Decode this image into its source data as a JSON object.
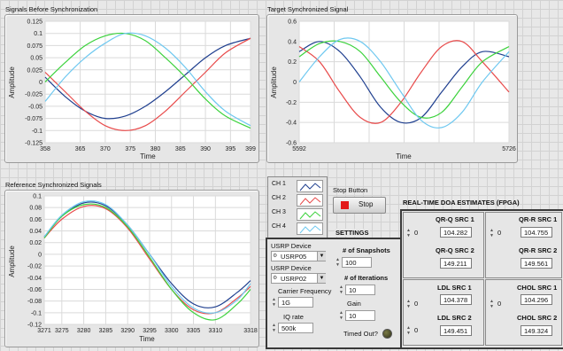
{
  "charts": {
    "before": {
      "title": "Signals Before Synchronization",
      "xlabel": "Time",
      "ylabel": "Amplitude",
      "xticks": [
        "358",
        "365",
        "370",
        "375",
        "380",
        "385",
        "390",
        "395",
        "399"
      ],
      "yticks": [
        "0.125",
        "0.1",
        "0.075",
        "0.05",
        "0.025",
        "0",
        "-0.025",
        "-0.05",
        "-0.075",
        "-0.1",
        "-0.125"
      ]
    },
    "target": {
      "title": "Target Synchronized Signal",
      "xlabel": "Time",
      "ylabel": "Amplitude",
      "xticks": [
        "5592",
        "5726"
      ],
      "yticks": [
        "0.6",
        "0.4",
        "0.2",
        "0",
        "-0.2",
        "-0.4",
        "-0.6"
      ]
    },
    "reference": {
      "title": "Reference Synchronized Signals",
      "xlabel": "Time",
      "ylabel": "Amplitude",
      "xticks": [
        "3271",
        "3275",
        "3280",
        "3285",
        "3290",
        "3295",
        "3300",
        "3305",
        "3310",
        "3318"
      ],
      "yticks": [
        "0.1",
        "0.08",
        "0.06",
        "0.04",
        "0.02",
        "0",
        "-0.02",
        "-0.04",
        "-0.06",
        "-0.08",
        "-0.1",
        "-0.12"
      ]
    }
  },
  "chart_data": [
    {
      "type": "line",
      "title": "Signals Before Synchronization",
      "xlabel": "Time",
      "ylabel": "Amplitude",
      "xlim": [
        358,
        399
      ],
      "ylim": [
        -0.125,
        0.125
      ],
      "grid": true,
      "series": [
        {
          "name": "CH 1",
          "color": "#1f3f8f",
          "x": [
            358,
            362,
            366,
            370,
            374,
            378,
            382,
            386,
            390,
            394,
            399
          ],
          "values": [
            0.01,
            -0.03,
            -0.06,
            -0.075,
            -0.07,
            -0.05,
            -0.02,
            0.015,
            0.05,
            0.075,
            0.09
          ]
        },
        {
          "name": "CH 2",
          "color": "#e84a4a",
          "x": [
            358,
            362,
            366,
            370,
            374,
            378,
            382,
            386,
            390,
            394,
            399
          ],
          "values": [
            0.02,
            -0.02,
            -0.06,
            -0.09,
            -0.1,
            -0.09,
            -0.06,
            -0.02,
            0.02,
            0.06,
            0.09
          ]
        },
        {
          "name": "CH 3",
          "color": "#3cd23c",
          "x": [
            358,
            362,
            366,
            370,
            374,
            378,
            382,
            386,
            390,
            394,
            399
          ],
          "values": [
            0.0,
            0.04,
            0.075,
            0.095,
            0.1,
            0.085,
            0.05,
            0.01,
            -0.035,
            -0.07,
            -0.095
          ]
        },
        {
          "name": "CH 4",
          "color": "#6ec8f0",
          "x": [
            358,
            362,
            366,
            370,
            374,
            378,
            382,
            386,
            390,
            394,
            399
          ],
          "values": [
            -0.04,
            0.01,
            0.05,
            0.08,
            0.1,
            0.095,
            0.07,
            0.03,
            -0.02,
            -0.06,
            -0.09
          ]
        }
      ]
    },
    {
      "type": "line",
      "title": "Target Synchronized Signal",
      "xlabel": "Time",
      "ylabel": "Amplitude",
      "xlim": [
        5592,
        5726
      ],
      "ylim": [
        -0.6,
        0.6
      ],
      "grid": true,
      "series": [
        {
          "name": "CH 1",
          "color": "#1f3f8f",
          "x": [
            5592,
            5605,
            5618,
            5631,
            5644,
            5657,
            5670,
            5683,
            5696,
            5709,
            5726
          ],
          "values": [
            0.3,
            0.4,
            0.3,
            0.05,
            -0.25,
            -0.4,
            -0.35,
            -0.1,
            0.15,
            0.3,
            0.25
          ]
        },
        {
          "name": "CH 2",
          "color": "#e84a4a",
          "x": [
            5592,
            5605,
            5618,
            5631,
            5644,
            5657,
            5670,
            5683,
            5696,
            5709,
            5726
          ],
          "values": [
            0.35,
            0.2,
            -0.1,
            -0.35,
            -0.4,
            -0.2,
            0.1,
            0.35,
            0.4,
            0.2,
            -0.1
          ]
        },
        {
          "name": "CH 3",
          "color": "#3cd23c",
          "x": [
            5592,
            5605,
            5618,
            5631,
            5644,
            5657,
            5670,
            5683,
            5696,
            5709,
            5726
          ],
          "values": [
            0.25,
            0.38,
            0.4,
            0.3,
            0.05,
            -0.2,
            -0.35,
            -0.3,
            -0.05,
            0.2,
            0.35
          ]
        },
        {
          "name": "CH 4",
          "color": "#6ec8f0",
          "x": [
            5592,
            5605,
            5618,
            5631,
            5644,
            5657,
            5670,
            5683,
            5696,
            5709,
            5726
          ],
          "values": [
            0.0,
            0.25,
            0.42,
            0.4,
            0.2,
            -0.1,
            -0.38,
            -0.45,
            -0.3,
            0.0,
            0.3
          ]
        }
      ]
    },
    {
      "type": "line",
      "title": "Reference Synchronized Signals",
      "xlabel": "Time",
      "ylabel": "Amplitude",
      "xlim": [
        3271,
        3318
      ],
      "ylim": [
        -0.12,
        0.1
      ],
      "grid": true,
      "series": [
        {
          "name": "CH 1",
          "color": "#1f3f8f",
          "x": [
            3271,
            3275,
            3280,
            3285,
            3290,
            3295,
            3300,
            3305,
            3310,
            3315,
            3318
          ],
          "values": [
            0.03,
            0.065,
            0.088,
            0.083,
            0.05,
            0.0,
            -0.05,
            -0.085,
            -0.09,
            -0.065,
            -0.045
          ]
        },
        {
          "name": "CH 2",
          "color": "#e84a4a",
          "x": [
            3271,
            3275,
            3280,
            3285,
            3290,
            3295,
            3300,
            3305,
            3310,
            3315,
            3318
          ],
          "values": [
            0.028,
            0.06,
            0.082,
            0.078,
            0.045,
            -0.008,
            -0.06,
            -0.095,
            -0.1,
            -0.075,
            -0.055
          ]
        },
        {
          "name": "CH 3",
          "color": "#3cd23c",
          "x": [
            3271,
            3275,
            3280,
            3285,
            3290,
            3295,
            3300,
            3305,
            3310,
            3315,
            3318
          ],
          "values": [
            0.028,
            0.065,
            0.085,
            0.08,
            0.047,
            -0.005,
            -0.06,
            -0.1,
            -0.112,
            -0.085,
            -0.06
          ]
        },
        {
          "name": "CH 4",
          "color": "#6ec8f0",
          "x": [
            3271,
            3275,
            3280,
            3285,
            3290,
            3295,
            3300,
            3305,
            3310,
            3315,
            3318
          ],
          "values": [
            0.03,
            0.067,
            0.09,
            0.085,
            0.05,
            0.0,
            -0.055,
            -0.092,
            -0.1,
            -0.078,
            -0.05
          ]
        }
      ]
    }
  ],
  "legend": {
    "items": [
      {
        "label": "CH 1",
        "color": "#1f3f8f"
      },
      {
        "label": "CH 2",
        "color": "#e84a4a"
      },
      {
        "label": "CH 3",
        "color": "#3cd23c"
      },
      {
        "label": "CH 4",
        "color": "#6ec8f0"
      }
    ]
  },
  "stop": {
    "caption": "Stop Button",
    "label": "Stop",
    "color": "#e31a1a"
  },
  "settings": {
    "title": "SETTINGS",
    "device1_label": "USRP Device",
    "device1_value": "USRP05",
    "device2_label": "USRP Device",
    "device2_value": "USRP02",
    "freq_label": "Carrier Frequency",
    "freq_value": "1G",
    "iq_label": "IQ rate",
    "iq_value": "500k",
    "snapshots_label": "# of Snapshots",
    "snapshots_value": "100",
    "iterations_label": "# of Iterations",
    "iterations_value": "10",
    "gain_label": "Gain",
    "gain_value": "10",
    "timedout_label": "Timed Out?"
  },
  "doa": {
    "title": "REAL-TIME DOA ESTIMATES (FPGA)",
    "qrq": {
      "ctl": "0",
      "src1_label": "QR-Q SRC 1",
      "src1_value": "104.282",
      "src2_label": "QR-Q SRC 2",
      "src2_value": "149.211"
    },
    "qrr": {
      "ctl": "0",
      "src1_label": "QR-R SRC 1",
      "src1_value": "104.755",
      "src2_label": "QR-R SRC 2",
      "src2_value": "149.561"
    },
    "ldl": {
      "ctl": "0",
      "src1_label": "LDL SRC 1",
      "src1_value": "104.378",
      "src2_label": "LDL SRC 2",
      "src2_value": "149.451"
    },
    "chol": {
      "ctl": "0",
      "src1_label": "CHOL SRC 1",
      "src1_value": "104.296",
      "src2_label": "CHOL SRC 2",
      "src2_value": "149.324"
    }
  }
}
